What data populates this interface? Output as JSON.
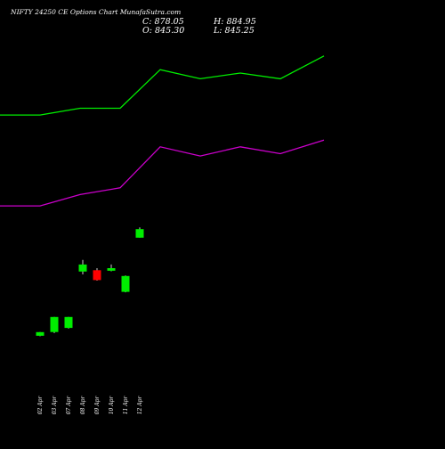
{
  "chart_data": {
    "type": "candlestick",
    "title": "NIFTY 24250 CE Options Chart MunafaSutra.com",
    "ohlc_summary": {
      "close_label": "C: 878.05",
      "open_label": "O: 845.30",
      "high_label": "H: 884.95",
      "low_label": "L: 845.25"
    },
    "price_range": [
      440,
      920
    ],
    "line_range": [
      0,
      100
    ],
    "categories": [
      "02 Apr",
      "03 Apr",
      "07 Apr",
      "08 Apr",
      "09 Apr",
      "10 Apr",
      "11 Apr",
      "12 Apr"
    ],
    "candles": [
      {
        "open": 468,
        "close": 482,
        "high": 482,
        "low": 466
      },
      {
        "open": 482,
        "close": 540,
        "high": 540,
        "low": 478
      },
      {
        "open": 498,
        "close": 540,
        "high": 540,
        "low": 496
      },
      {
        "open": 715,
        "close": 742,
        "high": 760,
        "low": 704
      },
      {
        "open": 720,
        "close": 682,
        "high": 728,
        "low": 680
      },
      {
        "open": 718,
        "close": 728,
        "high": 742,
        "low": 716
      },
      {
        "open": 637,
        "close": 698,
        "high": 700,
        "low": 635
      },
      {
        "open": 845.3,
        "close": 878.05,
        "high": 884.95,
        "low": 845.25
      }
    ],
    "series": [
      {
        "color": "#00ee00",
        "x": [
          0,
          45,
          90,
          135,
          180,
          225,
          270,
          315,
          364
        ],
        "values": [
          67,
          67,
          70,
          70,
          87,
          83,
          85.5,
          83,
          93
        ]
      },
      {
        "color": "#cc00cc",
        "x": [
          0,
          45,
          90,
          135,
          180,
          225,
          270,
          315,
          364
        ],
        "values": [
          27,
          27,
          32,
          35,
          53,
          49,
          53,
          50,
          56
        ]
      }
    ],
    "colors": {
      "up": "#00ee00",
      "down": "#ff0000",
      "wick": "#ffffff",
      "background": "#000000"
    }
  }
}
